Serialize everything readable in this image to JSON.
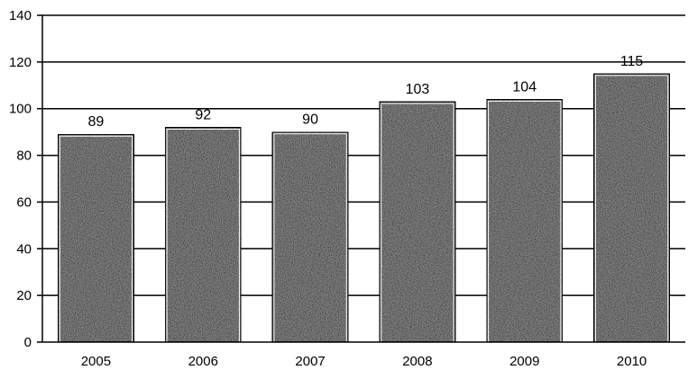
{
  "chart_data": {
    "type": "bar",
    "categories": [
      "2005",
      "2006",
      "2007",
      "2008",
      "2009",
      "2010"
    ],
    "values": [
      89,
      92,
      90,
      103,
      104,
      115
    ],
    "data_labels": [
      "89",
      "92",
      "90",
      "103",
      "104",
      "115"
    ],
    "title": "",
    "xlabel": "",
    "ylabel": "",
    "ylim": [
      0,
      140
    ],
    "yticks": [
      0,
      20,
      40,
      60,
      80,
      100,
      120,
      140
    ],
    "grid": true,
    "bar_fill": "textured gray",
    "colors": {
      "bar": "#8c8c8c",
      "bar_dark": "#3c3c3c",
      "bar_light": "#d2d2d2",
      "grid": "#000000"
    }
  }
}
